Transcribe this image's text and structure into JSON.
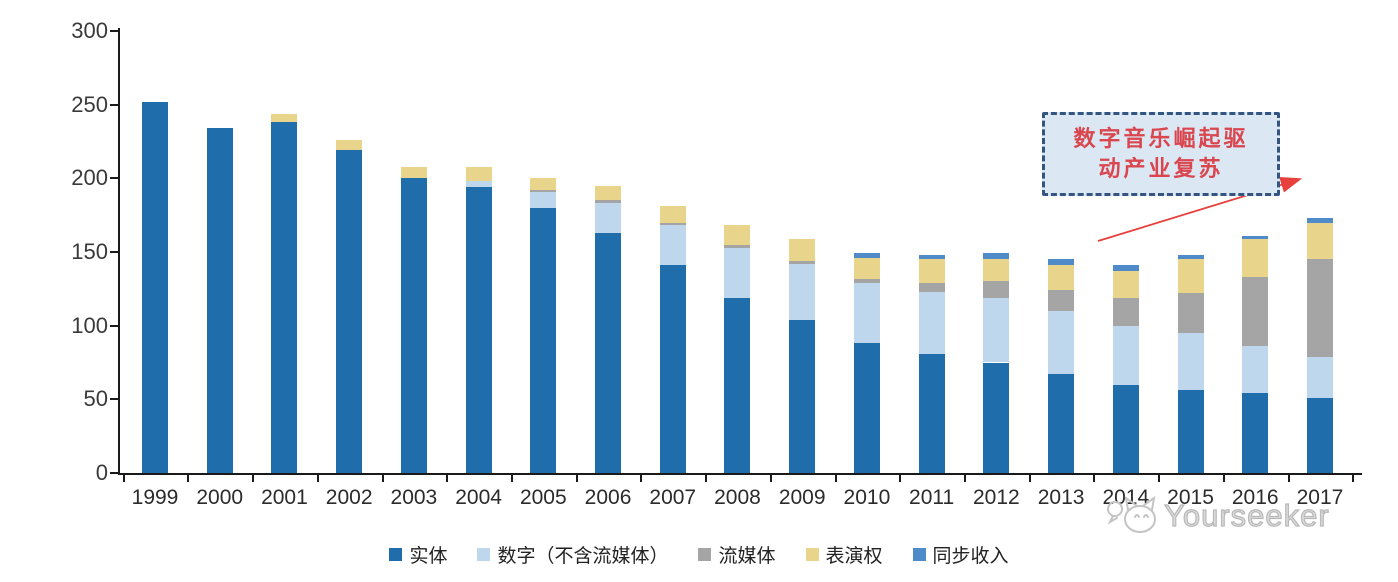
{
  "chart_data": {
    "type": "bar",
    "stacked": true,
    "categories": [
      "1999",
      "2000",
      "2001",
      "2002",
      "2003",
      "2004",
      "2005",
      "2006",
      "2007",
      "2008",
      "2009",
      "2010",
      "2011",
      "2012",
      "2013",
      "2014",
      "2015",
      "2016",
      "2017"
    ],
    "series": [
      {
        "name": "实体",
        "color": "#1f6dab",
        "values": [
          252,
          234,
          238,
          219,
          200,
          194,
          180,
          163,
          141,
          119,
          104,
          88,
          81,
          75,
          67,
          60,
          56,
          54,
          51
        ]
      },
      {
        "name": "数字（不含流媒体）",
        "color": "#bfd7ec",
        "values": [
          0,
          0,
          0,
          0,
          0,
          4,
          11,
          20,
          27,
          34,
          38,
          41,
          42,
          44,
          43,
          40,
          39,
          32,
          28
        ]
      },
      {
        "name": "流媒体",
        "color": "#a5a5a5",
        "values": [
          0,
          0,
          0,
          0,
          0,
          0,
          1,
          2,
          2,
          2,
          2,
          3,
          6,
          11,
          14,
          19,
          27,
          47,
          66
        ]
      },
      {
        "name": "表演权",
        "color": "#e9d48c",
        "values": [
          0,
          0,
          6,
          7,
          8,
          10,
          8,
          10,
          11,
          13,
          15,
          14,
          16,
          15,
          17,
          18,
          23,
          26,
          25
        ]
      },
      {
        "name": "同步收入",
        "color": "#4f8bc9",
        "values": [
          0,
          0,
          0,
          0,
          0,
          0,
          0,
          0,
          0,
          0,
          0,
          3,
          3,
          4,
          4,
          4,
          3,
          2,
          3
        ]
      }
    ],
    "ylim": [
      0,
      300
    ],
    "yticks": [
      0,
      50,
      100,
      150,
      200,
      250,
      300
    ],
    "grid": false,
    "legend_position": "bottom"
  },
  "annotation": {
    "text": "数字音乐崛起驱动产业复苏",
    "lines": [
      "数字音乐崛起驱",
      "动产业复苏"
    ],
    "box_fill": "#dce7f4",
    "box_border": "#33557f",
    "text_color": "#d9464e",
    "arrow_color": "#e8403c"
  },
  "watermark": {
    "text": "Yourseeker",
    "logo_icon": "cat-face-logo",
    "color": "#bdbdbd"
  },
  "axis": {
    "line_color": "#1a1a1a",
    "tick_label_color": "#3a3a3a"
  }
}
